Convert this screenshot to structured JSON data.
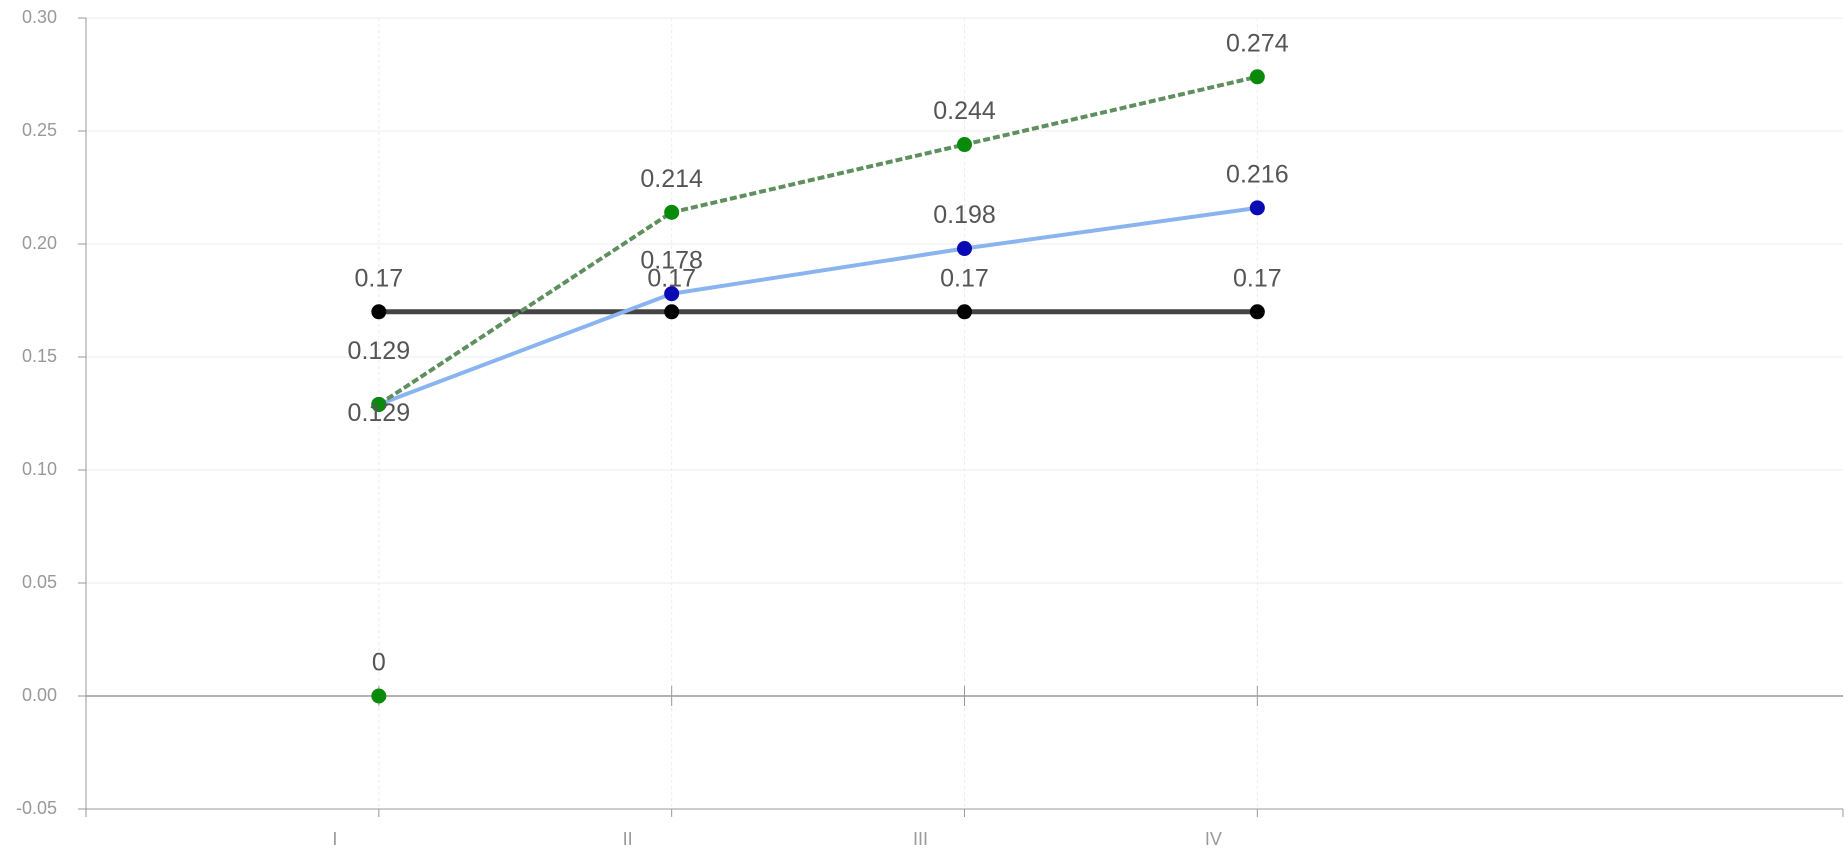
{
  "chart_data": {
    "type": "line",
    "categories": [
      "I",
      "II",
      "III",
      "IV"
    ],
    "series": [
      {
        "color": "#000000",
        "line_color": "#444444",
        "values": [
          0.17,
          0.17,
          0.17,
          0.17
        ]
      },
      {
        "color": "#0a0ab4",
        "line_color": "#8ab4f0",
        "values": [
          0.129,
          0.178,
          0.198,
          0.216
        ]
      },
      {
        "color": "#0a8a0a",
        "line_color": "#5f8f5f",
        "dash": true,
        "values": [
          0.129,
          0.214,
          0.244,
          0.274
        ]
      },
      {
        "color": "#0a8a0a",
        "values": [
          0,
          null,
          null,
          null
        ]
      }
    ],
    "ylim": [
      -0.05,
      0.3
    ],
    "yticks": [
      {
        "value": 0.3,
        "label": "0.30"
      },
      0.25,
      {
        "value": 0.2,
        "label": "0.20"
      },
      0.15,
      {
        "value": 0.1,
        "label": "0.10"
      },
      0.05,
      {
        "value": 0,
        "label": "0.00"
      },
      -0.05
    ],
    "grid": true
  }
}
